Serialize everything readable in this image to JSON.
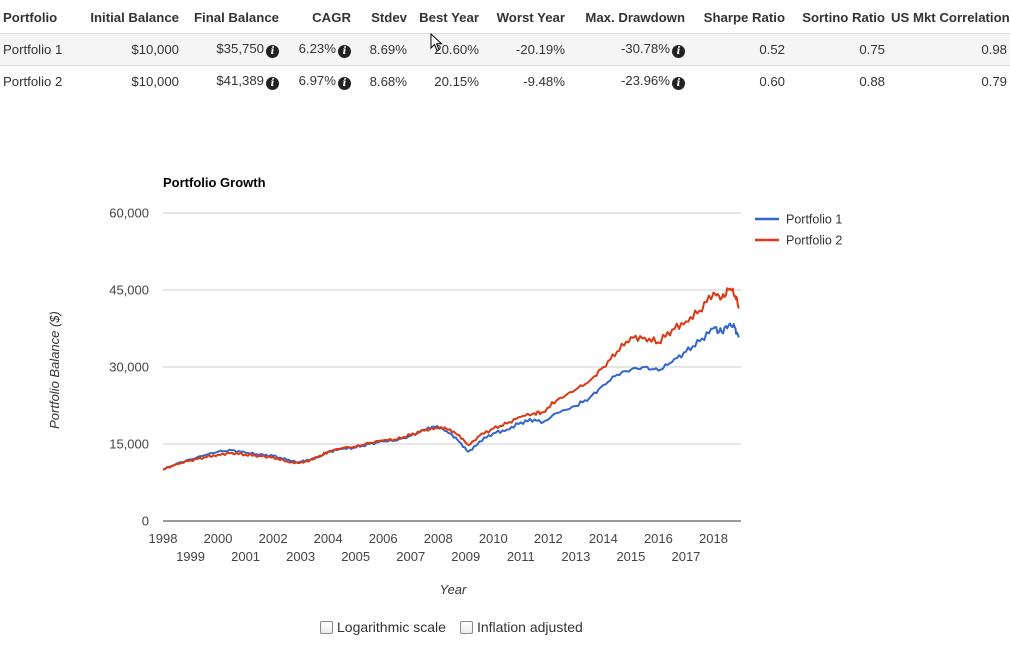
{
  "summary_table": {
    "headers": [
      "Portfolio",
      "Initial Balance",
      "Final Balance",
      "CAGR",
      "Stdev",
      "Best Year",
      "Worst Year",
      "Max. Drawdown",
      "Sharpe Ratio",
      "Sortino Ratio",
      "US Mkt Correlation"
    ],
    "rows": [
      {
        "portfolio": "Portfolio 1",
        "initial_balance": "$10,000",
        "final_balance": "$35,750",
        "cagr": "6.23%",
        "stdev": "8.69%",
        "best_year": "20.60%",
        "worst_year": "-20.19%",
        "max_drawdown": "-30.78%",
        "sharpe": "0.52",
        "sortino": "0.75",
        "correlation": "0.98"
      },
      {
        "portfolio": "Portfolio 2",
        "initial_balance": "$10,000",
        "final_balance": "$41,389",
        "cagr": "6.97%",
        "stdev": "8.68%",
        "best_year": "20.15%",
        "worst_year": "-9.48%",
        "max_drawdown": "-23.96%",
        "sharpe": "0.60",
        "sortino": "0.88",
        "correlation": "0.79"
      }
    ]
  },
  "chart_data": {
    "type": "line",
    "title": "Portfolio Growth",
    "xlabel": "Year",
    "ylabel": "Portfolio Balance ($)",
    "xlim": [
      1998,
      2019
    ],
    "ylim": [
      0,
      60000
    ],
    "y_ticks": [
      0,
      15000,
      30000,
      45000,
      60000
    ],
    "y_tick_labels": [
      "0",
      "15,000",
      "30,000",
      "45,000",
      "60,000"
    ],
    "x_ticks_upper": [
      "1998",
      "2000",
      "2002",
      "2004",
      "2006",
      "2008",
      "2010",
      "2012",
      "2014",
      "2016",
      "2018"
    ],
    "x_ticks_lower": [
      "1999",
      "2001",
      "2003",
      "2005",
      "2007",
      "2009",
      "2011",
      "2013",
      "2015",
      "2017"
    ],
    "grid": true,
    "legend_position": "top-right",
    "series": [
      {
        "name": "Portfolio 1",
        "color": "#3366cc",
        "points": [
          [
            1998.0,
            10000
          ],
          [
            1998.5,
            11200
          ],
          [
            1999.0,
            12000
          ],
          [
            1999.5,
            12800
          ],
          [
            2000.0,
            13500
          ],
          [
            2000.5,
            13800
          ],
          [
            2001.0,
            13300
          ],
          [
            2001.5,
            12900
          ],
          [
            2002.0,
            12700
          ],
          [
            2002.5,
            11900
          ],
          [
            2002.9,
            11400
          ],
          [
            2003.3,
            11800
          ],
          [
            2003.7,
            12500
          ],
          [
            2004.0,
            13500
          ],
          [
            2004.5,
            14000
          ],
          [
            2005.0,
            14300
          ],
          [
            2005.5,
            15000
          ],
          [
            2006.0,
            15500
          ],
          [
            2006.5,
            15700
          ],
          [
            2007.0,
            16600
          ],
          [
            2007.5,
            17800
          ],
          [
            2007.9,
            18300
          ],
          [
            2008.3,
            17500
          ],
          [
            2008.7,
            15800
          ],
          [
            2009.1,
            13500
          ],
          [
            2009.5,
            15500
          ],
          [
            2010.0,
            17100
          ],
          [
            2010.5,
            17800
          ],
          [
            2011.0,
            19200
          ],
          [
            2011.5,
            19800
          ],
          [
            2011.8,
            19200
          ],
          [
            2012.3,
            21000
          ],
          [
            2013.0,
            22400
          ],
          [
            2013.5,
            24000
          ],
          [
            2014.0,
            26500
          ],
          [
            2014.5,
            28500
          ],
          [
            2015.0,
            29500
          ],
          [
            2015.5,
            30000
          ],
          [
            2016.0,
            29300
          ],
          [
            2016.5,
            31000
          ],
          [
            2017.0,
            33000
          ],
          [
            2017.5,
            35000
          ],
          [
            2018.0,
            37500
          ],
          [
            2018.3,
            36800
          ],
          [
            2018.6,
            38500
          ],
          [
            2018.8,
            37500
          ],
          [
            2018.92,
            35750
          ]
        ]
      },
      {
        "name": "Portfolio 2",
        "color": "#dc3912",
        "points": [
          [
            1998.0,
            10000
          ],
          [
            1998.5,
            11100
          ],
          [
            1999.0,
            11800
          ],
          [
            1999.5,
            12400
          ],
          [
            2000.0,
            12900
          ],
          [
            2000.5,
            13300
          ],
          [
            2001.0,
            12900
          ],
          [
            2001.5,
            12700
          ],
          [
            2002.0,
            12400
          ],
          [
            2002.5,
            11600
          ],
          [
            2002.9,
            11300
          ],
          [
            2003.3,
            11600
          ],
          [
            2003.7,
            12700
          ],
          [
            2004.0,
            13500
          ],
          [
            2004.5,
            14200
          ],
          [
            2005.0,
            14500
          ],
          [
            2005.5,
            15200
          ],
          [
            2006.0,
            15700
          ],
          [
            2006.5,
            15900
          ],
          [
            2007.0,
            16800
          ],
          [
            2007.5,
            17600
          ],
          [
            2007.9,
            18200
          ],
          [
            2008.3,
            17900
          ],
          [
            2008.7,
            16800
          ],
          [
            2009.1,
            14800
          ],
          [
            2009.5,
            16600
          ],
          [
            2010.0,
            18000
          ],
          [
            2010.5,
            19000
          ],
          [
            2011.0,
            20300
          ],
          [
            2011.5,
            21000
          ],
          [
            2011.8,
            21200
          ],
          [
            2012.3,
            23500
          ],
          [
            2013.0,
            25600
          ],
          [
            2013.5,
            27300
          ],
          [
            2014.0,
            30000
          ],
          [
            2014.5,
            33000
          ],
          [
            2015.0,
            35800
          ],
          [
            2015.5,
            35700
          ],
          [
            2016.0,
            34800
          ],
          [
            2016.5,
            37300
          ],
          [
            2017.0,
            38900
          ],
          [
            2017.5,
            41000
          ],
          [
            2018.0,
            44500
          ],
          [
            2018.3,
            43400
          ],
          [
            2018.6,
            45300
          ],
          [
            2018.8,
            43800
          ],
          [
            2018.92,
            41389
          ]
        ]
      }
    ]
  },
  "options": {
    "log_scale_label": "Logarithmic scale",
    "inflation_label": "Inflation adjusted"
  }
}
